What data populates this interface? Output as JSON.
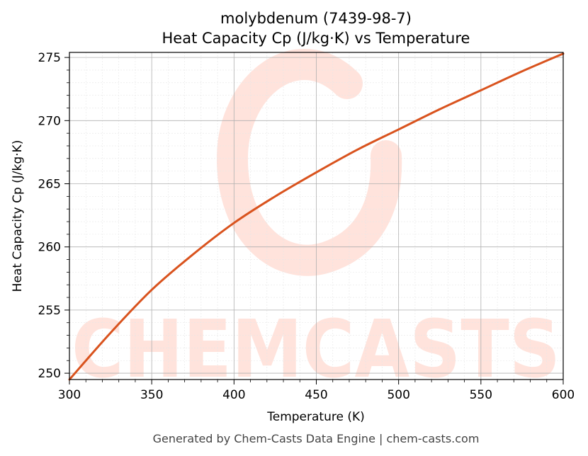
{
  "chart_data": {
    "type": "line",
    "title": "molybdenum (7439-98-7)",
    "subtitle": "Heat Capacity Cp (J/kg·K) vs Temperature",
    "xlabel": "Temperature (K)",
    "ylabel": "Heat Capacity Cp (J/kg·K)",
    "xlim": [
      300,
      600
    ],
    "ylim": [
      249.5,
      275.4
    ],
    "xticks": [
      300,
      350,
      400,
      450,
      500,
      550,
      600
    ],
    "yticks": [
      250,
      255,
      260,
      265,
      270,
      275
    ],
    "grid": true,
    "series": [
      {
        "color": "#d9531e",
        "x": [
          300,
          325,
          350,
          375,
          400,
          425,
          450,
          475,
          500,
          525,
          550,
          575,
          600
        ],
        "y": [
          249.5,
          253.2,
          256.6,
          259.4,
          261.9,
          264.0,
          265.9,
          267.7,
          269.3,
          270.9,
          272.4,
          273.9,
          275.3
        ]
      }
    ]
  },
  "watermark": "CHEMCASTS",
  "footer": "Generated by Chem-Casts Data Engine | chem-casts.com"
}
